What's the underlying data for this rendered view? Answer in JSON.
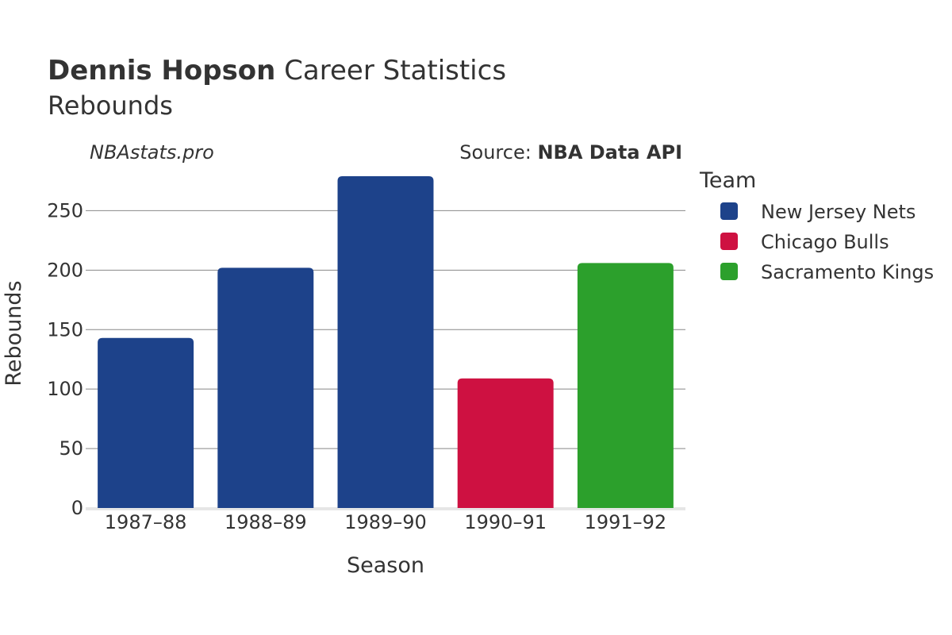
{
  "header": {
    "player_name": "Dennis Hopson",
    "title_rest": " Career Statistics",
    "subtitle": "Rebounds",
    "watermark": "NBAstats.pro",
    "source_prefix": "Source: ",
    "source_name": "NBA Data API"
  },
  "legend": {
    "title": "Team",
    "items": [
      {
        "label": "New Jersey Nets",
        "color": "#1d428a"
      },
      {
        "label": "Chicago Bulls",
        "color": "#ce1141"
      },
      {
        "label": "Sacramento Kings",
        "color": "#2ca02c"
      }
    ]
  },
  "chart_data": {
    "type": "bar",
    "title": "Dennis Hopson Career Statistics",
    "subtitle": "Rebounds",
    "xlabel": "Season",
    "ylabel": "Rebounds",
    "categories": [
      "1987–88",
      "1988–89",
      "1989–90",
      "1990–91",
      "1991–92"
    ],
    "values": [
      143,
      202,
      279,
      109,
      206
    ],
    "teams": [
      "New Jersey Nets",
      "New Jersey Nets",
      "New Jersey Nets",
      "Chicago Bulls",
      "Sacramento Kings"
    ],
    "colors": [
      "#1d428a",
      "#1d428a",
      "#1d428a",
      "#ce1141",
      "#2ca02c"
    ],
    "yticks": [
      0,
      50,
      100,
      150,
      200,
      250
    ],
    "ylim": [
      0,
      287
    ],
    "grid": true,
    "legend_position": "right"
  }
}
